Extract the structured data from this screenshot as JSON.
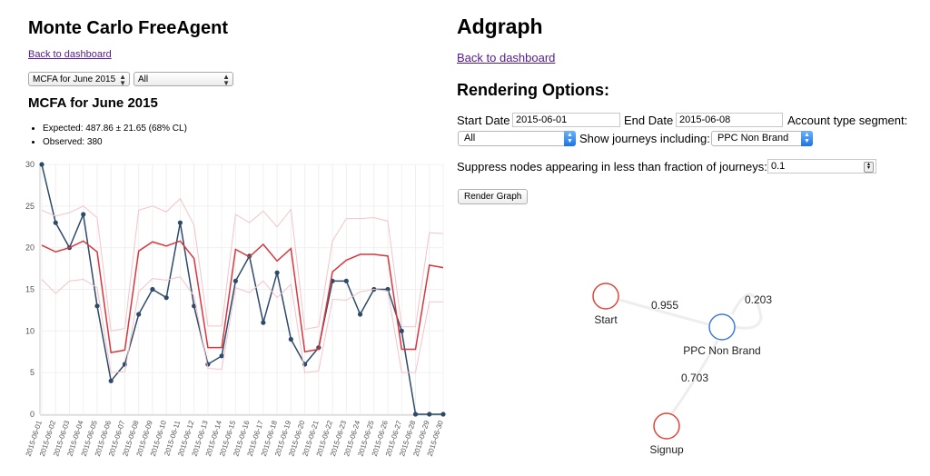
{
  "left": {
    "title": "Monte Carlo FreeAgent",
    "back_link": "Back to dashboard",
    "report_select": "MCFA for June 2015",
    "filter_select": "All",
    "report_heading": "MCFA for June 2015",
    "stats": [
      "Expected: 487.86 ± 21.65 (68% CL)",
      "Observed: 380"
    ]
  },
  "right": {
    "title": "Adgraph",
    "back_link": "Back to dashboard",
    "options_heading": "Rendering Options:",
    "start_label": "Start Date",
    "start_value": "2015-06-01",
    "end_label": "End Date",
    "end_value": "2015-06-08",
    "segment_label": "Account type segment:",
    "segment_value": "All",
    "journeys_label": "Show journeys including:",
    "journeys_value": "PPC Non Brand",
    "suppress_label": "Suppress nodes appearing in less than fraction of journeys:",
    "suppress_value": "0.1",
    "render_button": "Render Graph"
  },
  "graph": {
    "nodes": [
      {
        "id": "start",
        "label": "Start",
        "color": "#e0433a"
      },
      {
        "id": "ppc",
        "label": "PPC Non Brand",
        "color": "#3e7bd9"
      },
      {
        "id": "signup",
        "label": "Signup",
        "color": "#e0433a"
      }
    ],
    "edges": [
      {
        "from": "start",
        "to": "ppc",
        "label": "0.955"
      },
      {
        "from": "ppc",
        "to": "ppc",
        "label": "0.203"
      },
      {
        "from": "ppc",
        "to": "signup",
        "label": "0.703"
      }
    ]
  },
  "chart_data": {
    "type": "line",
    "x": [
      "2015-06-01",
      "2015-06-02",
      "2015-06-03",
      "2015-06-04",
      "2015-06-05",
      "2015-06-06",
      "2015-06-07",
      "2015-06-08",
      "2015-06-09",
      "2015-06-10",
      "2015-06-11",
      "2015-06-12",
      "2015-06-13",
      "2015-06-14",
      "2015-06-15",
      "2015-06-16",
      "2015-06-17",
      "2015-06-18",
      "2015-06-19",
      "2015-06-20",
      "2015-06-21",
      "2015-06-22",
      "2015-06-23",
      "2015-06-24",
      "2015-06-25",
      "2015-06-26",
      "2015-06-27",
      "2015-06-28",
      "2015-06-29",
      "2015-06-30"
    ],
    "ylim": [
      0,
      30
    ],
    "yticks": [
      0,
      5,
      10,
      15,
      20,
      25,
      30
    ],
    "grid": true,
    "series": [
      {
        "role": "observed",
        "color": "#2e4a6b",
        "markers": true,
        "values": [
          30,
          23,
          20,
          24,
          13,
          4,
          6,
          12,
          15,
          14,
          23,
          13,
          6,
          7,
          16,
          19,
          11,
          17,
          9,
          6,
          8,
          16,
          16,
          12,
          15,
          15,
          10,
          0,
          0,
          0
        ]
      },
      {
        "role": "expected",
        "color": "#d9363e",
        "markers": false,
        "values": [
          20.3,
          19.5,
          20,
          20.8,
          19.5,
          7.4,
          7.7,
          19.6,
          20.7,
          20.2,
          20.8,
          18.7,
          8,
          8,
          19.8,
          18.9,
          20.4,
          18.4,
          19.9,
          7.5,
          7.8,
          17.1,
          18.5,
          19.2,
          19.2,
          19,
          7.8,
          7.8,
          17.9,
          17.6
        ]
      },
      {
        "role": "upper",
        "color": "#f3c4c7",
        "markers": false,
        "values": [
          24.5,
          23.8,
          24.2,
          25,
          23.6,
          10,
          10.3,
          24.5,
          25,
          24.3,
          25.9,
          22.7,
          10.6,
          10.6,
          24,
          23,
          24.4,
          22.5,
          24.6,
          10.2,
          10.5,
          20.8,
          23.5,
          23.5,
          23.6,
          23.2,
          10.5,
          10.5,
          21.8,
          21.7
        ]
      },
      {
        "role": "lower",
        "color": "#f3c4c7",
        "markers": false,
        "values": [
          16.2,
          14.5,
          16,
          16.2,
          15.2,
          5,
          5.1,
          14.7,
          16.3,
          16.1,
          16.5,
          14.2,
          5.5,
          5.4,
          15.2,
          14.6,
          16,
          14,
          15.6,
          5,
          5.2,
          13.8,
          13.7,
          14.7,
          15,
          14.8,
          5,
          5,
          13.5,
          13.5
        ]
      }
    ]
  }
}
